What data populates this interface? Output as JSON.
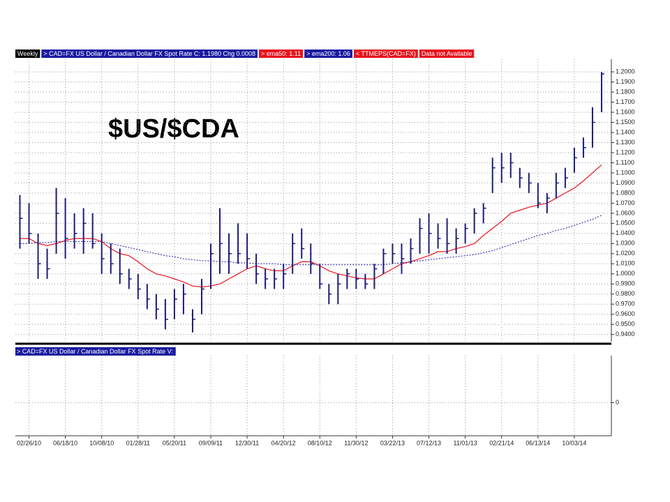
{
  "chart_data": {
    "type": "ohlc",
    "title": "$US/$CDA",
    "period": "Weekly",
    "notes": [
      "< TTMEPS(CAD=FX)",
      "Data not Available"
    ],
    "x": [
      "01/29/10",
      "02/26/10",
      "03/26/10",
      "04/23/10",
      "05/21/10",
      "06/18/10",
      "07/16/10",
      "08/13/10",
      "09/10/10",
      "10/08/10",
      "11/05/10",
      "12/03/10",
      "12/31/10",
      "01/28/11",
      "02/25/11",
      "03/25/11",
      "04/22/11",
      "05/20/11",
      "06/17/11",
      "07/15/11",
      "08/12/11",
      "09/09/11",
      "10/07/11",
      "11/04/11",
      "12/02/11",
      "12/30/11",
      "01/27/12",
      "02/24/12",
      "03/23/12",
      "04/20/12",
      "05/18/12",
      "06/15/12",
      "07/13/12",
      "08/10/12",
      "09/07/12",
      "10/05/12",
      "11/02/12",
      "11/30/12",
      "12/28/12",
      "01/25/13",
      "02/22/13",
      "03/22/13",
      "04/19/13",
      "05/17/13",
      "06/14/13",
      "07/12/13",
      "08/09/13",
      "09/06/13",
      "10/04/13",
      "11/01/13",
      "11/29/13",
      "12/27/13",
      "01/24/14",
      "02/21/14",
      "03/21/14",
      "04/18/14",
      "05/16/14",
      "06/13/14",
      "07/11/14",
      "08/08/14",
      "09/05/14",
      "10/03/14",
      "10/31/14",
      "11/28/14",
      "12/26/14"
    ],
    "xlim": [
      "01/15/10",
      "01/23/15"
    ],
    "xticks": [
      "02/26/10",
      "06/18/10",
      "10/08/10",
      "01/28/11",
      "05/20/11",
      "09/09/11",
      "12/30/11",
      "04/20/12",
      "08/10/12",
      "11/30/12",
      "03/22/13",
      "07/12/13",
      "11/01/13",
      "02/21/14",
      "06/13/14",
      "10/03/14"
    ],
    "ylim": [
      0.9315,
      1.2125
    ],
    "yticks": [
      {
        "value": 0.94,
        "label": "0.9400"
      },
      {
        "value": 0.95,
        "label": "0.9500"
      },
      {
        "value": 0.96,
        "label": "0.9600"
      },
      {
        "value": 0.97,
        "label": "0.9700"
      },
      {
        "value": 0.98,
        "label": "0.9800"
      },
      {
        "value": 0.99,
        "label": "0.9900"
      },
      {
        "value": 1.0,
        "label": "1.0000"
      },
      {
        "value": 1.01,
        "label": "1.0100"
      },
      {
        "value": 1.02,
        "label": "1.0200"
      },
      {
        "value": 1.03,
        "label": "1.0300"
      },
      {
        "value": 1.04,
        "label": "1.0400"
      },
      {
        "value": 1.05,
        "label": "1.0500"
      },
      {
        "value": 1.06,
        "label": "1.0600"
      },
      {
        "value": 1.07,
        "label": "1.0700"
      },
      {
        "value": 1.08,
        "label": "1.0800"
      },
      {
        "value": 1.09,
        "label": "1.0900"
      },
      {
        "value": 1.1,
        "label": "1.1000"
      },
      {
        "value": 1.11,
        "label": "1.1100"
      },
      {
        "value": 1.12,
        "label": "1.1200"
      },
      {
        "value": 1.13,
        "label": "1.1300"
      },
      {
        "value": 1.14,
        "label": "1.1400"
      },
      {
        "value": 1.15,
        "label": "1.1500"
      },
      {
        "value": 1.16,
        "label": "1.1600"
      },
      {
        "value": 1.17,
        "label": "1.1700"
      },
      {
        "value": 1.18,
        "label": "1.1800"
      },
      {
        "value": 1.19,
        "label": "1.1900"
      },
      {
        "value": 1.2,
        "label": "1.2000"
      }
    ],
    "grid": true,
    "series": [
      {
        "name": "> CAD=FX  US Dollar / Canadian Dollar FX Spot Rate  C: 1.1980  Chg 0.0008",
        "color": "#1c1c78",
        "strip_color": "#1a1aa0",
        "high": [
          1.078,
          1.07,
          1.04,
          1.025,
          1.085,
          1.075,
          1.06,
          1.065,
          1.06,
          1.04,
          1.03,
          1.025,
          1.005,
          1.0,
          0.99,
          0.98,
          0.975,
          0.985,
          0.99,
          0.965,
          0.995,
          1.03,
          1.065,
          1.04,
          1.05,
          1.04,
          1.02,
          1.005,
          1.005,
          1.01,
          1.04,
          1.045,
          1.03,
          1.01,
          0.99,
          1.0,
          1.005,
          1.005,
          1.0,
          1.01,
          1.025,
          1.03,
          1.03,
          1.035,
          1.055,
          1.06,
          1.05,
          1.055,
          1.045,
          1.05,
          1.065,
          1.07,
          1.115,
          1.12,
          1.12,
          1.105,
          1.1,
          1.09,
          1.08,
          1.1,
          1.105,
          1.125,
          1.135,
          1.165,
          1.2
        ],
        "low": [
          1.025,
          1.03,
          0.995,
          0.995,
          1.02,
          1.015,
          1.025,
          1.02,
          1.025,
          1.0,
          1.0,
          0.99,
          0.985,
          0.975,
          0.965,
          0.955,
          0.945,
          0.955,
          0.96,
          0.942,
          0.96,
          0.985,
          1.0,
          1.0,
          1.01,
          1.005,
          0.99,
          0.985,
          0.985,
          0.985,
          1.0,
          1.015,
          1.0,
          0.985,
          0.97,
          0.97,
          0.985,
          0.985,
          0.985,
          0.985,
          1.0,
          1.01,
          1.0,
          1.01,
          1.02,
          1.02,
          1.025,
          1.02,
          1.02,
          1.03,
          1.04,
          1.05,
          1.08,
          1.09,
          1.095,
          1.085,
          1.08,
          1.065,
          1.06,
          1.075,
          1.085,
          1.1,
          1.115,
          1.125,
          1.16
        ],
        "close": [
          1.055,
          1.04,
          1.01,
          1.005,
          1.06,
          1.035,
          1.04,
          1.05,
          1.03,
          1.015,
          1.01,
          1.0,
          0.995,
          0.985,
          0.975,
          0.965,
          0.955,
          0.975,
          0.98,
          0.955,
          0.985,
          1.02,
          1.03,
          1.02,
          1.02,
          1.015,
          1.0,
          0.995,
          0.995,
          1.0,
          1.03,
          1.025,
          1.01,
          0.99,
          0.98,
          0.99,
          1.0,
          0.995,
          0.99,
          1.005,
          1.02,
          1.02,
          1.015,
          1.025,
          1.045,
          1.04,
          1.035,
          1.03,
          1.035,
          1.045,
          1.06,
          1.065,
          1.105,
          1.105,
          1.11,
          1.095,
          1.09,
          1.07,
          1.075,
          1.09,
          1.095,
          1.115,
          1.125,
          1.15,
          1.198
        ]
      },
      {
        "name": "> ema50: 1.11",
        "color": "#e8141e",
        "strip_color": "#e8141e",
        "style": "solid",
        "values": [
          1.035,
          1.035,
          1.03,
          1.028,
          1.03,
          1.033,
          1.035,
          1.035,
          1.035,
          1.032,
          1.025,
          1.02,
          1.018,
          1.012,
          1.005,
          1.0,
          0.998,
          0.995,
          0.992,
          0.988,
          0.987,
          0.988,
          0.99,
          0.995,
          1.0,
          1.005,
          1.008,
          1.005,
          1.003,
          1.003,
          1.008,
          1.012,
          1.012,
          1.008,
          1.003,
          1.0,
          0.998,
          0.996,
          0.995,
          0.995,
          1.0,
          1.005,
          1.01,
          1.012,
          1.015,
          1.018,
          1.022,
          1.022,
          1.025,
          1.027,
          1.03,
          1.038,
          1.045,
          1.052,
          1.06,
          1.063,
          1.066,
          1.068,
          1.07,
          1.075,
          1.08,
          1.085,
          1.092,
          1.1,
          1.108
        ]
      },
      {
        "name": "> ema200: 1.06",
        "color": "#1a1aa8",
        "strip_color": "#1a1aa0",
        "style": "dotted",
        "values": [
          1.03,
          1.03,
          1.031,
          1.031,
          1.032,
          1.032,
          1.032,
          1.032,
          1.032,
          1.032,
          1.03,
          1.028,
          1.026,
          1.024,
          1.022,
          1.02,
          1.018,
          1.017,
          1.015,
          1.014,
          1.013,
          1.013,
          1.012,
          1.012,
          1.011,
          1.011,
          1.01,
          1.01,
          1.01,
          1.009,
          1.009,
          1.009,
          1.009,
          1.009,
          1.009,
          1.009,
          1.009,
          1.009,
          1.009,
          1.009,
          1.009,
          1.01,
          1.011,
          1.012,
          1.013,
          1.014,
          1.015,
          1.016,
          1.017,
          1.018,
          1.019,
          1.021,
          1.023,
          1.026,
          1.029,
          1.032,
          1.035,
          1.038,
          1.04,
          1.043,
          1.045,
          1.048,
          1.051,
          1.054,
          1.058
        ]
      }
    ],
    "lower_panel": {
      "label": "> CAD=FX  US Dollar / Canadian Dollar FX Spot Rate  V:",
      "yticks": [
        0
      ]
    }
  }
}
